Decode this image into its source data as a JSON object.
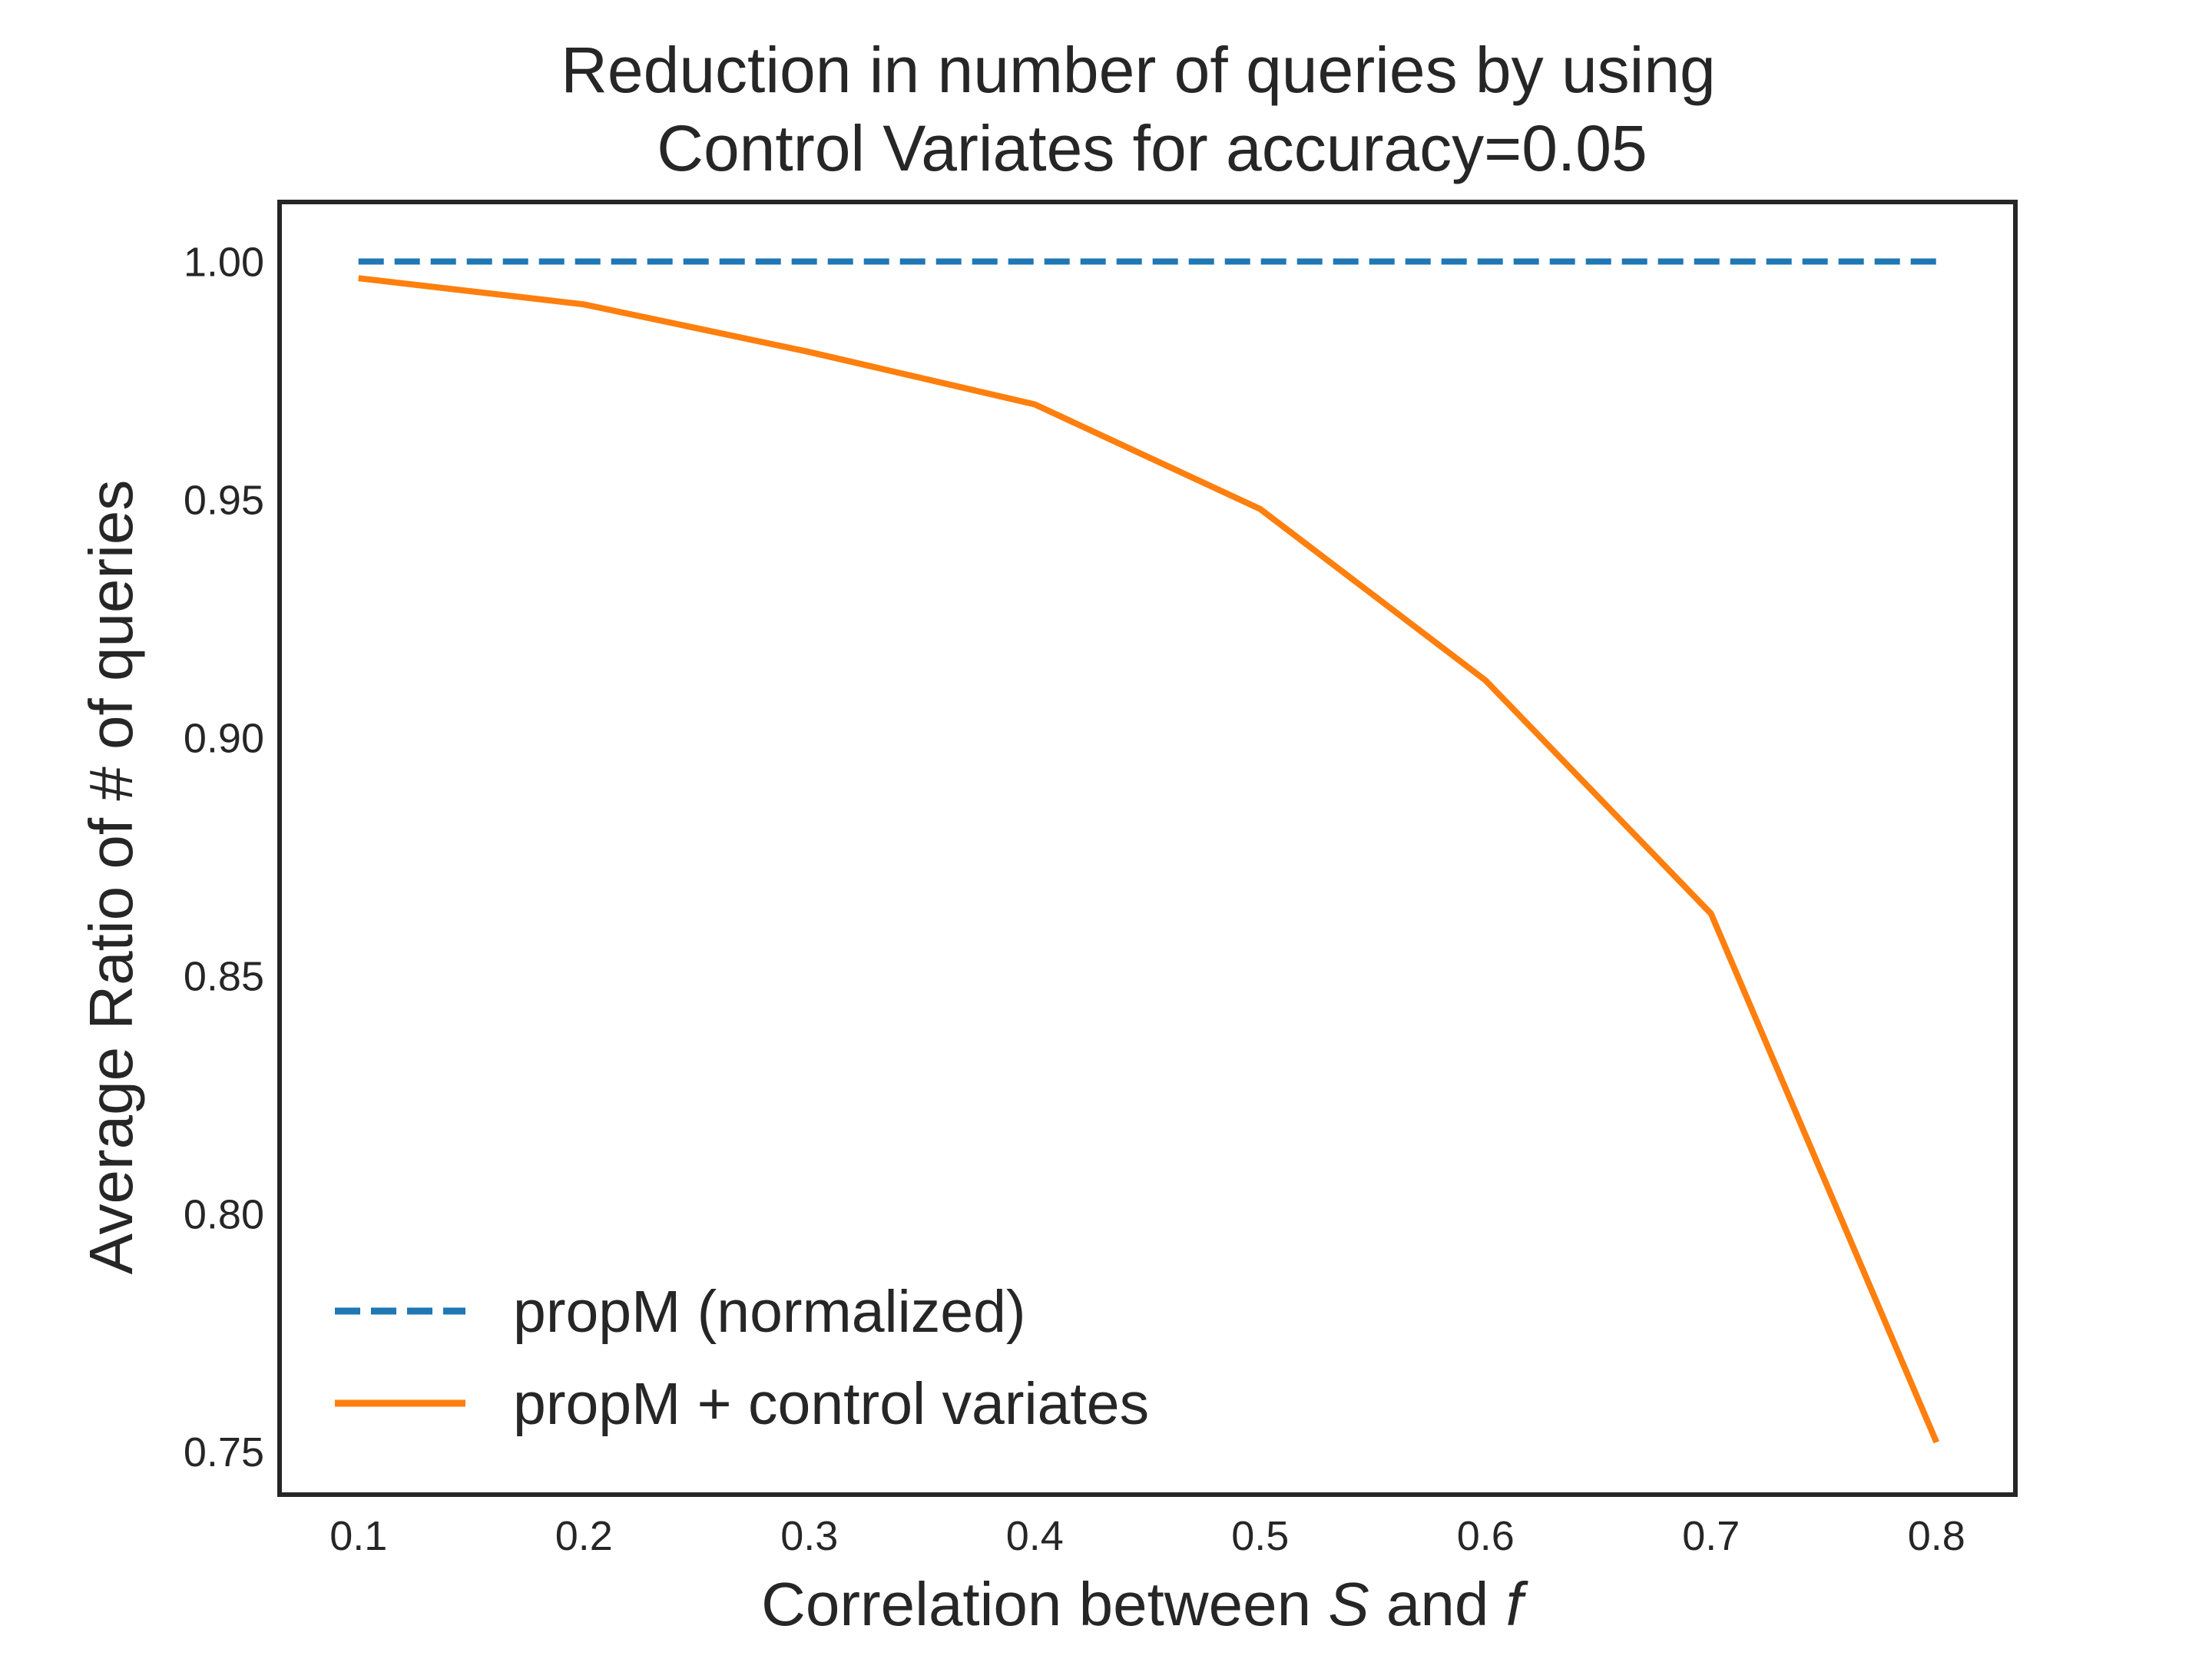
{
  "chart_data": {
    "type": "line",
    "title_line1": "Reduction in number of queries by using",
    "title_line2": "Control Variates for accuracy=0.05",
    "xlabel_prefix": "Correlation between ",
    "xlabel_var1": "S",
    "xlabel_mid": " and ",
    "xlabel_var2": "f",
    "ylabel": "Average Ratio of # of queries",
    "x": [
      0.1,
      0.2,
      0.3,
      0.4,
      0.5,
      0.6,
      0.7,
      0.8
    ],
    "x_tick_labels": [
      "0.1",
      "0.2",
      "0.3",
      "0.4",
      "0.5",
      "0.6",
      "0.7",
      "0.8"
    ],
    "y_ticks": [
      1.0,
      0.95,
      0.9,
      0.85,
      0.8,
      0.75
    ],
    "y_tick_labels": [
      "1.00",
      "0.95",
      "0.90",
      "0.85",
      "0.80",
      "0.75"
    ],
    "xlim": [
      0.065,
      0.835
    ],
    "ylim": [
      0.741,
      1.0125
    ],
    "grid": false,
    "legend_position": "lower-left",
    "series": [
      {
        "name": "propM (normalized)",
        "color": "#1f77b4",
        "style": "dashed",
        "values": [
          1.0,
          1.0,
          1.0,
          1.0,
          1.0,
          1.0,
          1.0,
          1.0
        ]
      },
      {
        "name": "propM + control variates",
        "color": "#ff7f0e",
        "style": "solid",
        "values": [
          0.9965,
          0.991,
          0.981,
          0.97,
          0.948,
          0.912,
          0.863,
          0.752
        ]
      }
    ]
  }
}
